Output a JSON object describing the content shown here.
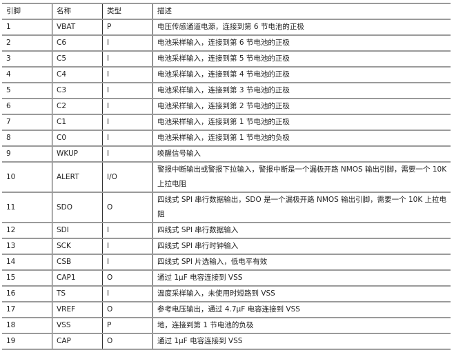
{
  "table": {
    "headers": [
      "引脚",
      "名称",
      "类型",
      "描述"
    ],
    "rows": [
      [
        "1",
        "VBAT",
        "P",
        "电压传感通道电源，连接到第 6 节电池的正极"
      ],
      [
        "2",
        "C6",
        "I",
        "电池采样输入，连接到第 6 节电池的正极"
      ],
      [
        "3",
        "C5",
        "I",
        "电池采样输入，连接到第 5 节电池的正极"
      ],
      [
        "4",
        "C4",
        "I",
        "电池采样输入，连接到第 4 节电池的正极"
      ],
      [
        "5",
        "C3",
        "I",
        "电池采样输入，连接到第 3 节电池的正极"
      ],
      [
        "6",
        "C2",
        "I",
        "电池采样输入，连接到第 2 节电池的正极"
      ],
      [
        "7",
        "C1",
        "I",
        "电池采样输入，连接到第 1 节电池的正极"
      ],
      [
        "8",
        "C0",
        "I",
        "电池采样输入，连接到第 1 节电池的负极"
      ],
      [
        "9",
        "WKUP",
        "I",
        "唤醒信号输入"
      ],
      [
        "10",
        "ALERT",
        "I/O",
        "警报中断输出或警报下拉输入，警报中断是一个漏极开路 NMOS 输出引脚，需要一个 10K 上拉电阻"
      ],
      [
        "11",
        "SDO",
        "O",
        "四线式 SPI 串行数据输出，SDO 是一个漏极开路 NMOS 输出引脚，需要一个 10K 上拉电阻"
      ],
      [
        "12",
        "SDI",
        "I",
        "四线式 SPI 串行数据输入"
      ],
      [
        "13",
        "SCK",
        "I",
        "四线式 SPI 串行时钟输入"
      ],
      [
        "14",
        "CSB",
        "I",
        "四线式 SPI 片选输入，低电平有效"
      ],
      [
        "15",
        "CAP1",
        "O",
        "通过 1μF 电容连接到 VSS"
      ],
      [
        "16",
        "TS",
        "I",
        "温度采样输入，未使用时短路到 VSS"
      ],
      [
        "17",
        "VREF",
        "O",
        "参考电压输出，通过 4.7μF 电容连接到 VSS"
      ],
      [
        "18",
        "VSS",
        "P",
        "地，连接到第 1 节电池的负极"
      ],
      [
        "19",
        "CAP",
        "O",
        "通过 1μF 电容连接到 VSS"
      ]
    ]
  }
}
